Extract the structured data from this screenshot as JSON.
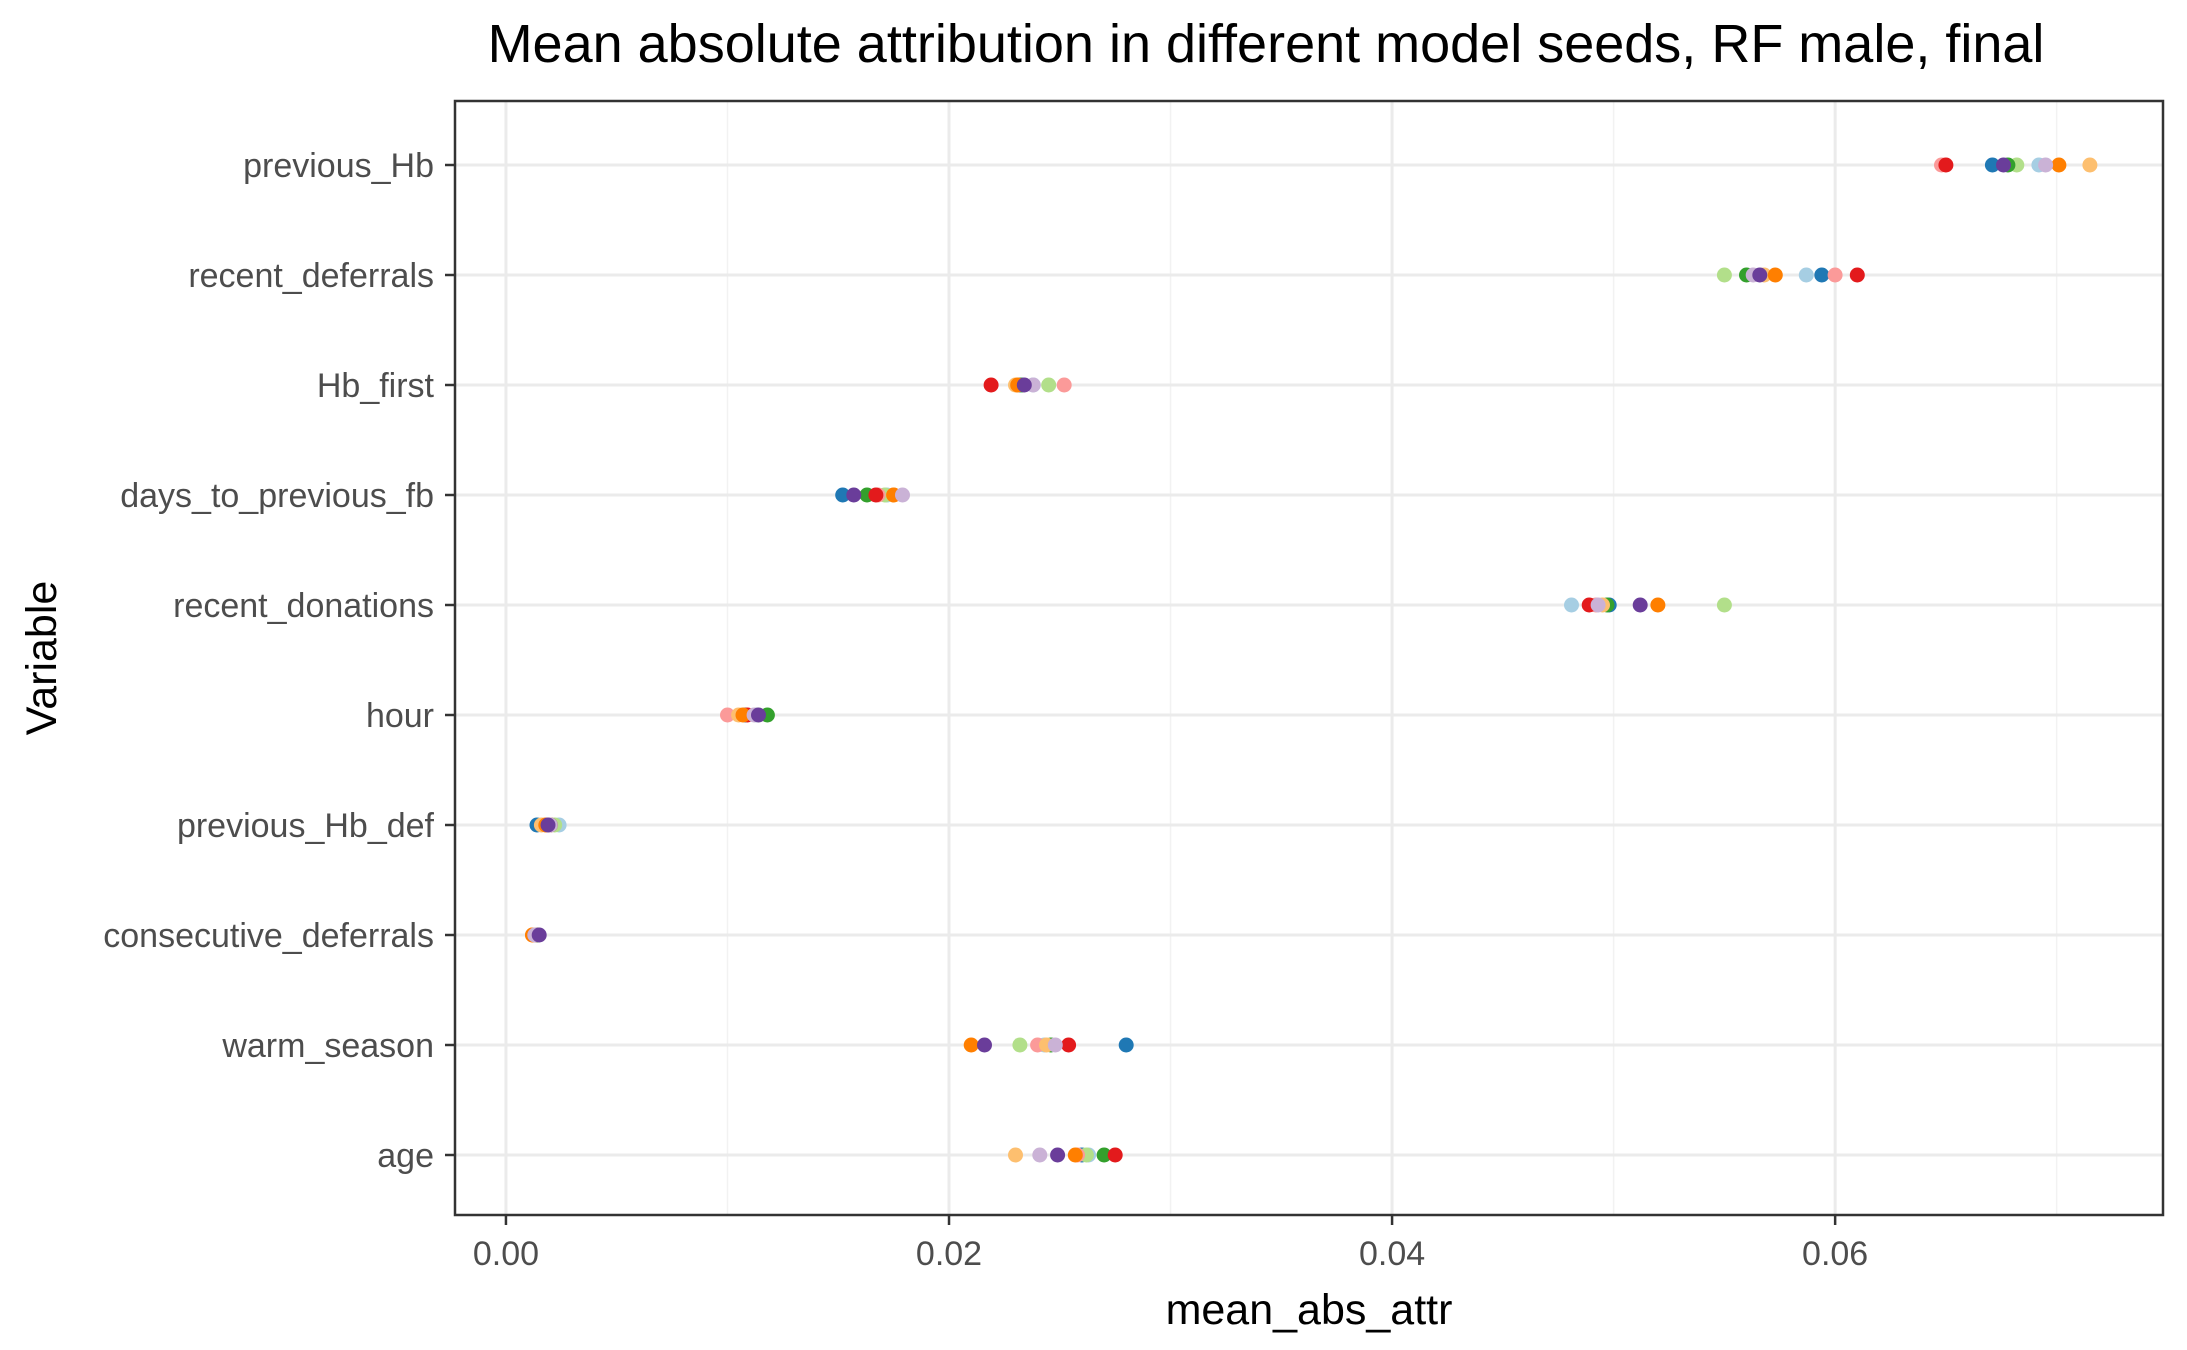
{
  "chart_data": {
    "type": "scatter",
    "title": "Mean absolute attribution in different model seeds, RF male, final",
    "xlabel": "mean_abs_attr",
    "ylabel": "Variable",
    "xlim": [
      -0.0023,
      0.0748
    ],
    "x_ticks": [
      0.0,
      0.02,
      0.04,
      0.06
    ],
    "x_tick_labels": [
      "0.00",
      "0.02",
      "0.04",
      "0.06"
    ],
    "grid": true,
    "legend": "none",
    "categories": [
      "previous_Hb",
      "recent_deferrals",
      "Hb_first",
      "days_to_previous_fb",
      "recent_donations",
      "hour",
      "previous_Hb_def",
      "consecutive_deferrals",
      "warm_season",
      "age"
    ],
    "series": [
      {
        "color": "#a6cee3",
        "values": [
          0.0692,
          0.0587,
          0.0238,
          0.0172,
          0.0481,
          0.0113,
          0.0024,
          0.0013,
          0.0243,
          0.0263
        ]
      },
      {
        "color": "#1f78b4",
        "values": [
          0.0671,
          0.0594,
          0.0232,
          0.0152,
          0.0498,
          0.0108,
          0.0014,
          0.0013,
          0.028,
          0.026
        ]
      },
      {
        "color": "#b2df8a",
        "values": [
          0.0682,
          0.055,
          0.0245,
          0.0171,
          0.055,
          0.0114,
          0.0022,
          0.0014,
          0.0232,
          0.0262
        ]
      },
      {
        "color": "#33a02c",
        "values": [
          0.0678,
          0.056,
          0.0233,
          0.0163,
          0.0497,
          0.0118,
          0.002,
          0.0014,
          0.0246,
          0.027
        ]
      },
      {
        "color": "#fb9a99",
        "values": [
          0.0648,
          0.06,
          0.0252,
          0.0168,
          0.0492,
          0.01,
          0.0018,
          0.0012,
          0.024,
          0.0258
        ]
      },
      {
        "color": "#e31a1c",
        "values": [
          0.065,
          0.061,
          0.0219,
          0.0167,
          0.0489,
          0.0109,
          0.002,
          0.0013,
          0.0254,
          0.0275
        ]
      },
      {
        "color": "#fdbf6f",
        "values": [
          0.0715,
          0.0568,
          0.023,
          0.0175,
          0.0495,
          0.0105,
          0.0016,
          0.0012,
          0.0244,
          0.023
        ]
      },
      {
        "color": "#ff7f00",
        "values": [
          0.0701,
          0.0573,
          0.0231,
          0.0175,
          0.052,
          0.0107,
          0.0018,
          0.0012,
          0.021,
          0.0257
        ]
      },
      {
        "color": "#cab2d6",
        "values": [
          0.0695,
          0.0563,
          0.0238,
          0.0179,
          0.0493,
          0.0112,
          0.002,
          0.0013,
          0.0248,
          0.0241
        ]
      },
      {
        "color": "#6a3d9a",
        "values": [
          0.0676,
          0.0566,
          0.0234,
          0.0157,
          0.0512,
          0.0114,
          0.0019,
          0.0015,
          0.0216,
          0.0249
        ]
      }
    ]
  }
}
